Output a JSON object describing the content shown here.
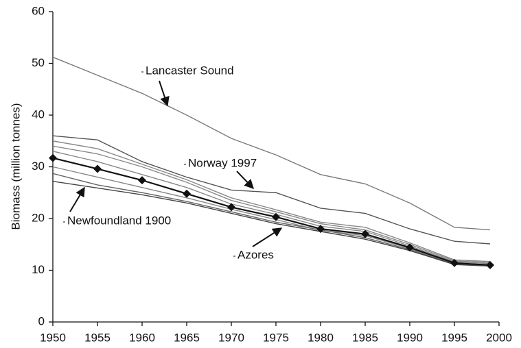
{
  "chart_data": {
    "type": "line",
    "y_label": "Biomass (million tonnes)",
    "x": [
      1950,
      1955,
      1960,
      1965,
      1970,
      1975,
      1980,
      1985,
      1990,
      1995,
      1999
    ],
    "xlim": [
      1950,
      2000
    ],
    "ylim": [
      0,
      60
    ],
    "xticks": [
      1950,
      1955,
      1960,
      1965,
      1970,
      1975,
      1980,
      1985,
      1990,
      1995,
      2000
    ],
    "yticks": [
      0,
      10,
      20,
      30,
      40,
      50,
      60
    ],
    "series": [
      {
        "name": "Lancaster Sound",
        "color": "#7a7a7a",
        "values": [
          51.2,
          47.7,
          44.2,
          40,
          35.5,
          32.3,
          28.5,
          26.7,
          23,
          18.3,
          17.8
        ]
      },
      {
        "name": "Norway 1997",
        "color": "#555555",
        "values": [
          36,
          35.2,
          31,
          28,
          25.5,
          25,
          22,
          21,
          18,
          15.6,
          15.1
        ]
      },
      {
        "color": "#888888",
        "values": [
          35,
          33.5,
          30.5,
          27.5,
          24,
          21.7,
          19.3,
          18.3,
          15.3,
          12,
          11.7
        ]
      },
      {
        "color": "#888888",
        "values": [
          34,
          32.5,
          30,
          27,
          23.5,
          21.3,
          19,
          17.8,
          15,
          11.8,
          11.5
        ]
      },
      {
        "color": "#888888",
        "values": [
          33,
          31,
          28.5,
          26,
          22.8,
          20.8,
          18.5,
          17.5,
          14.7,
          11.6,
          11.3
        ]
      },
      {
        "color": "#888888",
        "values": [
          30,
          28,
          26,
          24,
          21.8,
          19.8,
          17.7,
          16.7,
          14.2,
          11.3,
          11.1
        ]
      },
      {
        "name": "Azores",
        "color": "#666666",
        "values": [
          28.7,
          26.5,
          25,
          23.3,
          21.3,
          19.3,
          17.8,
          16.3,
          14,
          11.2,
          10.9
        ]
      },
      {
        "name": "Newfoundland 1900",
        "color": "#444444",
        "values": [
          27.2,
          25.9,
          24.6,
          23,
          21,
          19,
          17.5,
          16,
          13.8,
          11.1,
          10.8
        ]
      },
      {
        "color": "#111111",
        "markers": true,
        "values": [
          31.7,
          29.6,
          27.4,
          24.8,
          22.2,
          20.3,
          18.0,
          17.0,
          14.4,
          11.4,
          11.0
        ]
      }
    ]
  }
}
